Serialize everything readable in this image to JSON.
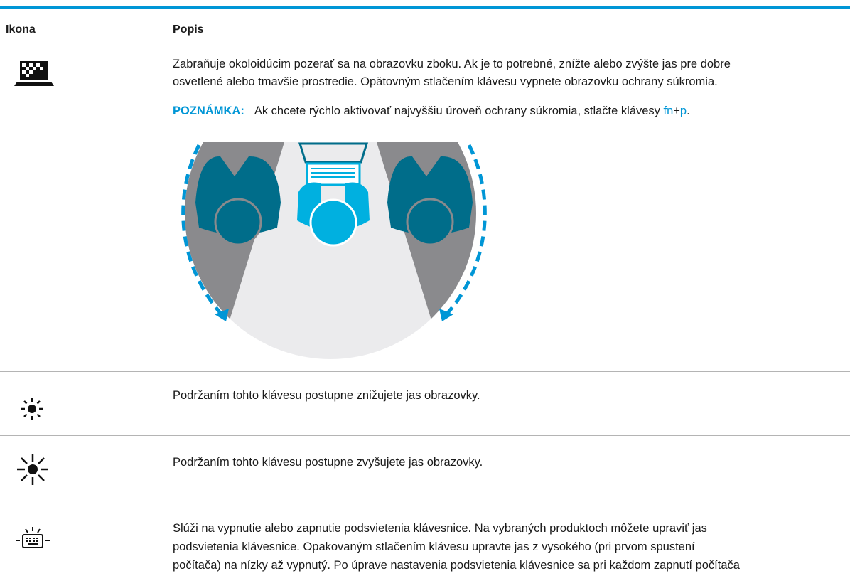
{
  "table": {
    "headers": [
      "Ikona",
      "Popis"
    ],
    "rows": [
      {
        "description": [
          "Zabraňuje okoloidúcim pozerať sa na obrazovku zboku. Ak je to potrebné, znížte alebo zvýšte jas pre dobre",
          "osvetlené alebo tmavšie prostredie. Opätovným stlačením klávesu vypnete obrazovku ochrany súkromia."
        ],
        "note": {
          "label": "POZNÁMKA:",
          "parts": [
            "Ak chcete rýchlo aktivovať najvyššiu úroveň ochrany súkromia, stlačte klávesy ",
            "fn",
            "+",
            "p",
            "."
          ]
        }
      },
      {
        "description": [
          "Podržaním tohto klávesu postupne znižujete jas obrazovky."
        ]
      },
      {
        "description": [
          "Podržaním tohto klávesu postupne zvyšujete jas obrazovky."
        ]
      },
      {
        "description": [
          "Slúži na vypnutie alebo zapnutie podsvietenia klávesnice. Na vybraných produktoch môžete upraviť jas",
          "podsvietenia klávesnice. Opakovaným stlačením klávesu upravte jas z vysokého (pri prvom spustení",
          "počítača) na nízky až vypnutý. Po úprave nastavenia podsvietenia klávesnice sa pri každom zapnutí počítača"
        ]
      }
    ]
  }
}
